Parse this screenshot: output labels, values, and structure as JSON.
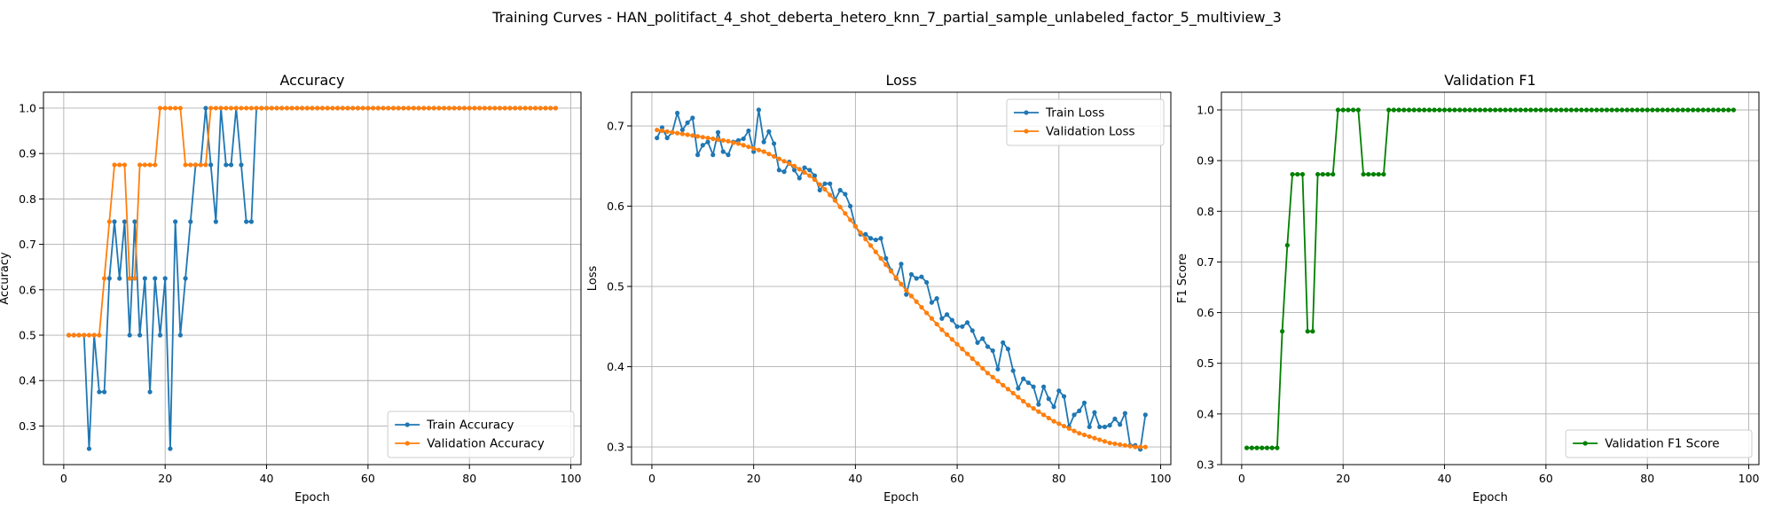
{
  "figure": {
    "title": "Training Curves - HAN_politifact_4_shot_deberta_hetero_knn_7_partial_sample_unlabeled_factor_5_multiview_3"
  },
  "chart_data": [
    {
      "type": "line",
      "title": "Accuracy",
      "xlabel": "Epoch",
      "ylabel": "Accuracy",
      "xlim": [
        -4,
        102
      ],
      "ylim": [
        0.215,
        1.035
      ],
      "xticks": [
        0,
        20,
        40,
        60,
        80,
        100
      ],
      "yticks": [
        0.3,
        0.4,
        0.5,
        0.6,
        0.7,
        0.8,
        0.9,
        1.0
      ],
      "ytick_labels": [
        "0.3",
        "0.4",
        "0.5",
        "0.6",
        "0.7",
        "0.8",
        "0.9",
        "1.0"
      ],
      "grid": true,
      "legend": "lower-right",
      "series": [
        {
          "name": "Train Accuracy",
          "color": "#1f77b4",
          "values": [
            0.5,
            0.5,
            0.5,
            0.5,
            0.25,
            0.5,
            0.375,
            0.375,
            0.625,
            0.75,
            0.625,
            0.75,
            0.5,
            0.75,
            0.5,
            0.625,
            0.375,
            0.625,
            0.5,
            0.625,
            0.25,
            0.75,
            0.5,
            0.625,
            0.75,
            0.875,
            0.875,
            1.0,
            0.875,
            0.75,
            1.0,
            0.875,
            0.875,
            1.0,
            0.875,
            0.75,
            0.75,
            1.0,
            1.0,
            1.0,
            1.0,
            1.0,
            1.0,
            1.0,
            1.0,
            1.0,
            1.0,
            1.0,
            1.0,
            1.0,
            1.0,
            1.0,
            1.0,
            1.0,
            1.0,
            1.0,
            1.0,
            1.0,
            1.0,
            1.0,
            1.0,
            1.0,
            1.0,
            1.0,
            1.0,
            1.0,
            1.0,
            1.0,
            1.0,
            1.0,
            1.0,
            1.0,
            1.0,
            1.0,
            1.0,
            1.0,
            1.0,
            1.0,
            1.0,
            1.0,
            1.0,
            1.0,
            1.0,
            1.0,
            1.0,
            1.0,
            1.0,
            1.0,
            1.0,
            1.0,
            1.0,
            1.0,
            1.0,
            1.0,
            1.0,
            1.0,
            1.0
          ]
        },
        {
          "name": "Validation Accuracy",
          "color": "#ff7f0e",
          "values": [
            0.5,
            0.5,
            0.5,
            0.5,
            0.5,
            0.5,
            0.5,
            0.625,
            0.75,
            0.875,
            0.875,
            0.875,
            0.625,
            0.625,
            0.875,
            0.875,
            0.875,
            0.875,
            1.0,
            1.0,
            1.0,
            1.0,
            1.0,
            0.875,
            0.875,
            0.875,
            0.875,
            0.875,
            1.0,
            1.0,
            1.0,
            1.0,
            1.0,
            1.0,
            1.0,
            1.0,
            1.0,
            1.0,
            1.0,
            1.0,
            1.0,
            1.0,
            1.0,
            1.0,
            1.0,
            1.0,
            1.0,
            1.0,
            1.0,
            1.0,
            1.0,
            1.0,
            1.0,
            1.0,
            1.0,
            1.0,
            1.0,
            1.0,
            1.0,
            1.0,
            1.0,
            1.0,
            1.0,
            1.0,
            1.0,
            1.0,
            1.0,
            1.0,
            1.0,
            1.0,
            1.0,
            1.0,
            1.0,
            1.0,
            1.0,
            1.0,
            1.0,
            1.0,
            1.0,
            1.0,
            1.0,
            1.0,
            1.0,
            1.0,
            1.0,
            1.0,
            1.0,
            1.0,
            1.0,
            1.0,
            1.0,
            1.0,
            1.0,
            1.0,
            1.0,
            1.0,
            1.0
          ]
        }
      ]
    },
    {
      "type": "line",
      "title": "Loss",
      "xlabel": "Epoch",
      "ylabel": "Loss",
      "xlim": [
        -4,
        102
      ],
      "ylim": [
        0.278,
        0.742
      ],
      "xticks": [
        0,
        20,
        40,
        60,
        80,
        100
      ],
      "yticks": [
        0.3,
        0.4,
        0.5,
        0.6,
        0.7
      ],
      "ytick_labels": [
        "0.3",
        "0.4",
        "0.5",
        "0.6",
        "0.7"
      ],
      "grid": true,
      "legend": "upper-right",
      "series": [
        {
          "name": "Train Loss",
          "color": "#1f77b4",
          "values": [
            0.685,
            0.698,
            0.685,
            0.692,
            0.716,
            0.695,
            0.704,
            0.71,
            0.664,
            0.676,
            0.68,
            0.664,
            0.692,
            0.668,
            0.664,
            0.68,
            0.682,
            0.684,
            0.694,
            0.668,
            0.72,
            0.68,
            0.693,
            0.678,
            0.645,
            0.643,
            0.655,
            0.645,
            0.635,
            0.648,
            0.645,
            0.638,
            0.62,
            0.628,
            0.628,
            0.608,
            0.62,
            0.615,
            0.6,
            0.575,
            0.565,
            0.565,
            0.56,
            0.558,
            0.56,
            0.535,
            0.52,
            0.51,
            0.528,
            0.49,
            0.515,
            0.51,
            0.512,
            0.505,
            0.48,
            0.485,
            0.46,
            0.465,
            0.458,
            0.45,
            0.45,
            0.455,
            0.445,
            0.43,
            0.435,
            0.425,
            0.42,
            0.397,
            0.43,
            0.422,
            0.395,
            0.373,
            0.385,
            0.38,
            0.375,
            0.353,
            0.375,
            0.36,
            0.35,
            0.37,
            0.363,
            0.325,
            0.34,
            0.345,
            0.355,
            0.325,
            0.343,
            0.325,
            0.325,
            0.327,
            0.335,
            0.328,
            0.342,
            0.302,
            0.302,
            0.297,
            0.34
          ]
        },
        {
          "name": "Validation Loss",
          "color": "#ff7f0e",
          "values": [
            0.695,
            0.694,
            0.693,
            0.692,
            0.691,
            0.69,
            0.689,
            0.688,
            0.687,
            0.686,
            0.685,
            0.684,
            0.683,
            0.682,
            0.681,
            0.679,
            0.678,
            0.676,
            0.674,
            0.672,
            0.67,
            0.668,
            0.665,
            0.662,
            0.659,
            0.656,
            0.653,
            0.65,
            0.646,
            0.642,
            0.638,
            0.633,
            0.627,
            0.621,
            0.614,
            0.607,
            0.599,
            0.591,
            0.583,
            0.575,
            0.567,
            0.559,
            0.551,
            0.543,
            0.535,
            0.527,
            0.519,
            0.511,
            0.503,
            0.495,
            0.488,
            0.481,
            0.474,
            0.467,
            0.46,
            0.453,
            0.446,
            0.44,
            0.434,
            0.428,
            0.422,
            0.416,
            0.41,
            0.404,
            0.398,
            0.392,
            0.387,
            0.382,
            0.377,
            0.372,
            0.367,
            0.362,
            0.357,
            0.352,
            0.348,
            0.344,
            0.34,
            0.336,
            0.332,
            0.329,
            0.326,
            0.323,
            0.32,
            0.317,
            0.315,
            0.313,
            0.311,
            0.309,
            0.307,
            0.305,
            0.304,
            0.303,
            0.302,
            0.301,
            0.3,
            0.3,
            0.3
          ]
        }
      ]
    },
    {
      "type": "line",
      "title": "Validation F1",
      "xlabel": "Epoch",
      "ylabel": "F1 Score",
      "xlim": [
        -4,
        102
      ],
      "ylim": [
        0.3,
        1.035
      ],
      "xticks": [
        0,
        20,
        40,
        60,
        80,
        100
      ],
      "yticks": [
        0.3,
        0.4,
        0.5,
        0.6,
        0.7,
        0.8,
        0.9,
        1.0
      ],
      "ytick_labels": [
        "0.3",
        "0.4",
        "0.5",
        "0.6",
        "0.7",
        "0.8",
        "0.9",
        "1.0"
      ],
      "grid": true,
      "legend": "lower-right",
      "series": [
        {
          "name": "Validation F1 Score",
          "color": "#008000",
          "values": [
            0.333,
            0.333,
            0.333,
            0.333,
            0.333,
            0.333,
            0.333,
            0.563,
            0.733,
            0.873,
            0.873,
            0.873,
            0.563,
            0.563,
            0.873,
            0.873,
            0.873,
            0.873,
            1.0,
            1.0,
            1.0,
            1.0,
            1.0,
            0.873,
            0.873,
            0.873,
            0.873,
            0.873,
            1.0,
            1.0,
            1.0,
            1.0,
            1.0,
            1.0,
            1.0,
            1.0,
            1.0,
            1.0,
            1.0,
            1.0,
            1.0,
            1.0,
            1.0,
            1.0,
            1.0,
            1.0,
            1.0,
            1.0,
            1.0,
            1.0,
            1.0,
            1.0,
            1.0,
            1.0,
            1.0,
            1.0,
            1.0,
            1.0,
            1.0,
            1.0,
            1.0,
            1.0,
            1.0,
            1.0,
            1.0,
            1.0,
            1.0,
            1.0,
            1.0,
            1.0,
            1.0,
            1.0,
            1.0,
            1.0,
            1.0,
            1.0,
            1.0,
            1.0,
            1.0,
            1.0,
            1.0,
            1.0,
            1.0,
            1.0,
            1.0,
            1.0,
            1.0,
            1.0,
            1.0,
            1.0,
            1.0,
            1.0,
            1.0,
            1.0,
            1.0,
            1.0,
            1.0
          ]
        }
      ]
    }
  ]
}
